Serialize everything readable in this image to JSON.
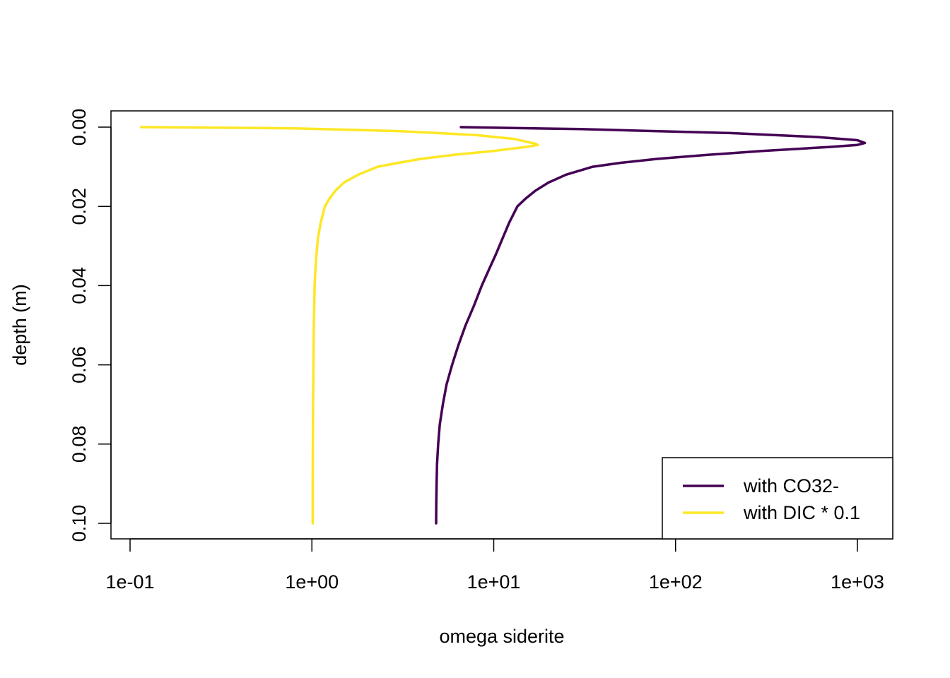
{
  "chart_data": {
    "type": "line",
    "title": "",
    "xlabel": "omega siderite",
    "ylabel": "depth (m)",
    "x_scale": "log10",
    "xlim": [
      0.1,
      1000
    ],
    "ylim": [
      0.1,
      0
    ],
    "y_reversed": true,
    "x_ticks": [
      0.1,
      1,
      10,
      100,
      1000
    ],
    "x_tick_labels": [
      "1e-01",
      "1e+00",
      "1e+01",
      "1e+02",
      "1e+03"
    ],
    "y_ticks": [
      0.0,
      0.02,
      0.04,
      0.06,
      0.08,
      0.1
    ],
    "y_tick_labels": [
      "0.00",
      "0.02",
      "0.04",
      "0.06",
      "0.08",
      "0.10"
    ],
    "legend_position": "bottom-right",
    "grid": false,
    "series": [
      {
        "name": "with CO32-",
        "color": "#440154",
        "points": [
          [
            6.6,
            0.0
          ],
          [
            30,
            0.0005
          ],
          [
            200,
            0.0015
          ],
          [
            600,
            0.0025
          ],
          [
            1000,
            0.0033
          ],
          [
            1100,
            0.004
          ],
          [
            1000,
            0.0045
          ],
          [
            700,
            0.005
          ],
          [
            300,
            0.006
          ],
          [
            150,
            0.007
          ],
          [
            80,
            0.008
          ],
          [
            50,
            0.009
          ],
          [
            35,
            0.01
          ],
          [
            25,
            0.012
          ],
          [
            20,
            0.014
          ],
          [
            17,
            0.016
          ],
          [
            15,
            0.018
          ],
          [
            13.5,
            0.02
          ],
          [
            12.2,
            0.024
          ],
          [
            11.2,
            0.028
          ],
          [
            10.3,
            0.032
          ],
          [
            9.4,
            0.036
          ],
          [
            8.6,
            0.04
          ],
          [
            7.8,
            0.045
          ],
          [
            7.0,
            0.05
          ],
          [
            6.4,
            0.055
          ],
          [
            5.9,
            0.06
          ],
          [
            5.5,
            0.065
          ],
          [
            5.25,
            0.07
          ],
          [
            5.05,
            0.075
          ],
          [
            4.95,
            0.08
          ],
          [
            4.88,
            0.085
          ],
          [
            4.85,
            0.09
          ],
          [
            4.83,
            0.095
          ],
          [
            4.82,
            0.1
          ]
        ]
      },
      {
        "name": "with DIC * 0.1",
        "color": "#FDE725",
        "points": [
          [
            0.115,
            0.0
          ],
          [
            0.8,
            0.0003
          ],
          [
            3,
            0.001
          ],
          [
            8,
            0.002
          ],
          [
            13,
            0.003
          ],
          [
            17,
            0.0042
          ],
          [
            17.5,
            0.0045
          ],
          [
            15,
            0.005
          ],
          [
            10,
            0.006
          ],
          [
            6,
            0.007
          ],
          [
            4,
            0.008
          ],
          [
            3,
            0.009
          ],
          [
            2.3,
            0.01
          ],
          [
            1.8,
            0.012
          ],
          [
            1.5,
            0.014
          ],
          [
            1.35,
            0.016
          ],
          [
            1.25,
            0.018
          ],
          [
            1.18,
            0.02
          ],
          [
            1.12,
            0.024
          ],
          [
            1.08,
            0.028
          ],
          [
            1.06,
            0.032
          ],
          [
            1.045,
            0.036
          ],
          [
            1.035,
            0.04
          ],
          [
            1.025,
            0.05
          ],
          [
            1.02,
            0.06
          ],
          [
            1.015,
            0.07
          ],
          [
            1.012,
            0.08
          ],
          [
            1.01,
            0.09
          ],
          [
            1.01,
            0.1
          ]
        ]
      }
    ]
  }
}
